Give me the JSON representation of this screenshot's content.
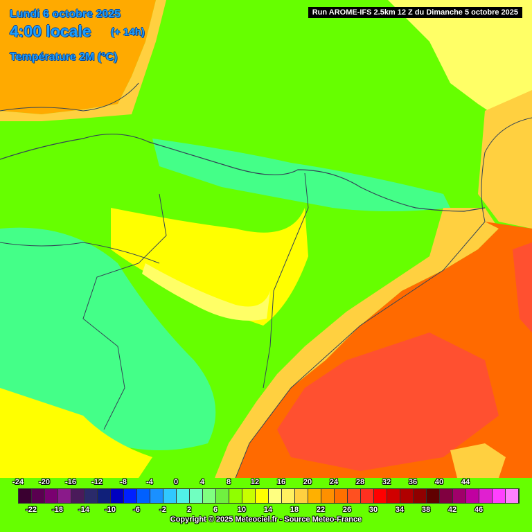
{
  "header": {
    "date": "Lundi 6 octobre 2025",
    "time": "4:00 locale",
    "lead": "(+ 14h)",
    "parameter": "Température 2M (°C)",
    "run": "Run AROME-IFS 2.5km 12 Z du Dimanche 5 octobre 2025"
  },
  "legend": {
    "top_ticks": [
      "-24",
      "-20",
      "-16",
      "-12",
      "-8",
      "-4",
      "0",
      "4",
      "8",
      "12",
      "16",
      "20",
      "24",
      "28",
      "32",
      "36",
      "40",
      "44"
    ],
    "bottom_ticks": [
      "-22",
      "-18",
      "-14",
      "-10",
      "-6",
      "-2",
      "2",
      "6",
      "10",
      "14",
      "18",
      "22",
      "26",
      "30",
      "34",
      "38",
      "42",
      "46"
    ],
    "colors": [
      "#3a0030",
      "#5a0050",
      "#7a0070",
      "#8a1a8a",
      "#4a1a5a",
      "#2a2a6a",
      "#10207a",
      "#0000c0",
      "#0020ff",
      "#0060ff",
      "#1a90ff",
      "#30c8ff",
      "#50f0e8",
      "#70ffc0",
      "#80ff80",
      "#70f040",
      "#90ff00",
      "#c8ff00",
      "#ffff00",
      "#ffff80",
      "#fff060",
      "#ffd040",
      "#ffb000",
      "#ff9000",
      "#ff7000",
      "#ff5020",
      "#ff3020",
      "#ff0000",
      "#d00000",
      "#b00000",
      "#900000",
      "#600000",
      "#800040",
      "#a0006a",
      "#c000a0",
      "#e020d0",
      "#ff40ff",
      "#ff80ff"
    ]
  },
  "footer": {
    "copyright": "Copyright © 2025 Meteociel.fr - Source Meteo-France"
  },
  "map_colors": {
    "sea_warm": "#ff6a00",
    "sea_hot": "#ff5030",
    "land_green": "#66ff00",
    "land_cyan": "#44ff88",
    "land_lightgreen": "#99ff33",
    "land_yellow": "#ffff00",
    "land_paleyellow": "#ffff66",
    "land_orange": "#ffaa00",
    "border": "#334455"
  }
}
